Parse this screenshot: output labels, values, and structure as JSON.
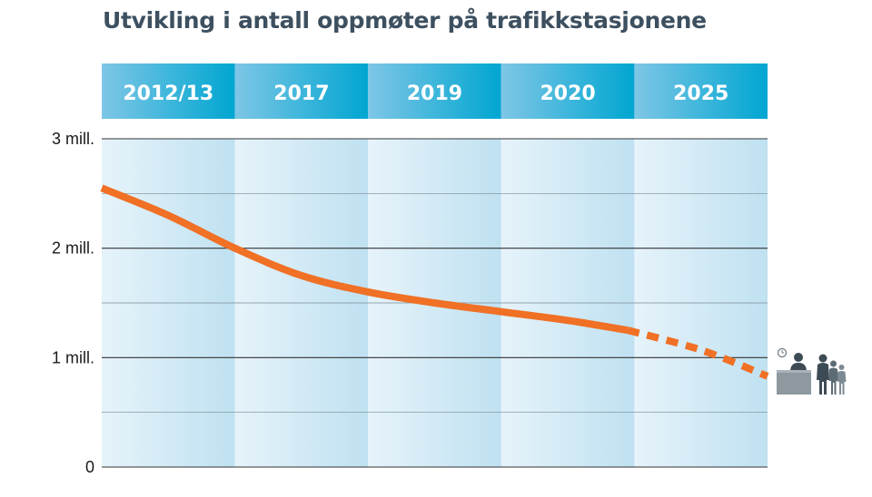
{
  "title": "Utvikling i antall oppmøter på trafikkstasjonene",
  "chart_data": {
    "type": "line",
    "title": "Utvikling i antall oppmøter på trafikkstasjonene",
    "categories": [
      "2012/13",
      "2017",
      "2019",
      "2020",
      "2025"
    ],
    "yticks": [
      "0",
      "1 mill.",
      "2 mill.",
      "3 mill."
    ],
    "ylim": [
      0,
      3000000
    ],
    "grid": true,
    "series": [
      {
        "style": "solid",
        "color": "#f07025",
        "points": [
          {
            "x": 0.0,
            "y": 2550000
          },
          {
            "x": 0.5,
            "y": 2300000
          },
          {
            "x": 1.0,
            "y": 2000000
          },
          {
            "x": 1.5,
            "y": 1750000
          },
          {
            "x": 2.0,
            "y": 1600000
          },
          {
            "x": 2.5,
            "y": 1500000
          },
          {
            "x": 3.0,
            "y": 1420000
          },
          {
            "x": 3.5,
            "y": 1340000
          },
          {
            "x": 3.95,
            "y": 1250000
          }
        ]
      },
      {
        "style": "dashed",
        "color": "#f07025",
        "points": [
          {
            "x": 3.95,
            "y": 1250000
          },
          {
            "x": 4.5,
            "y": 1070000
          },
          {
            "x": 5.0,
            "y": 830000
          }
        ]
      }
    ]
  },
  "colors": {
    "header_blue": "#1aa6cf",
    "line_orange": "#f07025",
    "title_gray": "#3d5060",
    "icon_gray": "#6f7d87"
  },
  "icon": "queue-at-counter-icon"
}
